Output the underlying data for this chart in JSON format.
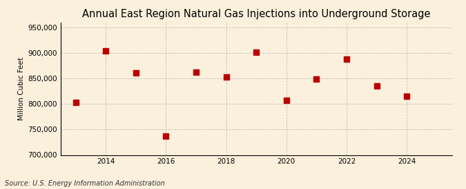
{
  "title": "Annual East Region Natural Gas Injections into Underground Storage",
  "ylabel": "Million Cubic Feet",
  "source": "Source: U.S. Energy Information Administration",
  "years": [
    2013,
    2014,
    2015,
    2016,
    2017,
    2018,
    2019,
    2020,
    2021,
    2022,
    2023,
    2024
  ],
  "values": [
    803000,
    905000,
    862000,
    737000,
    863000,
    853000,
    902000,
    807000,
    849000,
    888000,
    836000,
    815000
  ],
  "marker_color": "#bb0000",
  "marker_size": 28,
  "background_color": "#faf0dc",
  "grid_color": "#bbbbbb",
  "xlim": [
    2012.5,
    2025.5
  ],
  "ylim": [
    700000,
    960000
  ],
  "yticks": [
    700000,
    750000,
    800000,
    850000,
    900000,
    950000
  ],
  "xticks": [
    2014,
    2016,
    2018,
    2020,
    2022,
    2024
  ],
  "title_fontsize": 10.5,
  "ylabel_fontsize": 7.5,
  "tick_fontsize": 7.5,
  "source_fontsize": 7
}
